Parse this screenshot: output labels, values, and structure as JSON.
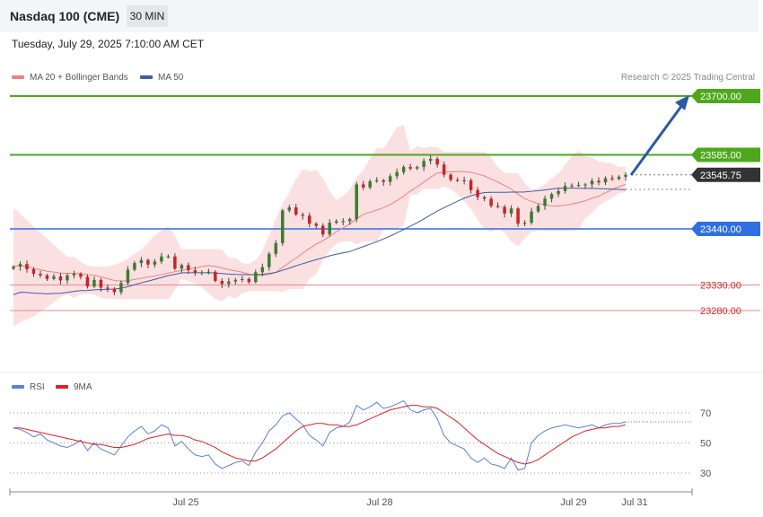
{
  "header": {
    "title": "Nasdaq 100 (CME)",
    "interval": "30 MIN"
  },
  "timestamp": "Tuesday, July 29, 2025 7:10:00 AM CET",
  "legend": {
    "ma20": "MA 20 + Bollinger Bands",
    "ma50": "MA 50"
  },
  "credit": "Research © 2025 Trading Central",
  "rsi_legend": {
    "rsi": "RSI",
    "ma9": "9MA"
  },
  "colors": {
    "up": "#3a7d2e",
    "down": "#cc2222",
    "ma20": "#f08080",
    "ma50": "#3b5fa0",
    "band": "#f9d6d8",
    "green_level": "#4ea81b",
    "blue_level": "#2f6fe0",
    "red_level": "#e88a8a",
    "arrow": "#2b5aa0"
  },
  "chart_data": [
    {
      "type": "candlestick",
      "title": "Nasdaq 100 (CME)",
      "interval": "30 MIN",
      "x_labels": [
        "Jul 25",
        "Jul 28",
        "Jul 29",
        "Jul 31"
      ],
      "levels": [
        {
          "value": 23700.0,
          "label": "23700.00",
          "kind": "resistance"
        },
        {
          "value": 23585.0,
          "label": "23585.00",
          "kind": "resistance"
        },
        {
          "value": 23545.75,
          "label": "23545.75",
          "kind": "last"
        },
        {
          "value": 23440.0,
          "label": "23440.00",
          "kind": "pivot"
        },
        {
          "value": 23330.0,
          "label": "23330.00",
          "kind": "support"
        },
        {
          "value": 23280.0,
          "label": "23280.00",
          "kind": "support"
        }
      ],
      "close_series": [
        23366,
        23371,
        23361,
        23352,
        23349,
        23342,
        23347,
        23339,
        23349,
        23352,
        23346,
        23327,
        23340,
        23325,
        23323,
        23316,
        23334,
        23360,
        23373,
        23379,
        23370,
        23376,
        23386,
        23386,
        23362,
        23369,
        23359,
        23354,
        23355,
        23356,
        23338,
        23332,
        23337,
        23340,
        23342,
        23336,
        23355,
        23365,
        23391,
        23412,
        23476,
        23482,
        23468,
        23466,
        23450,
        23446,
        23429,
        23452,
        23455,
        23455,
        23459,
        23527,
        23521,
        23533,
        23535,
        23532,
        23543,
        23551,
        23561,
        23558,
        23561,
        23573,
        23577,
        23566,
        23546,
        23536,
        23535,
        23535,
        23516,
        23502,
        23499,
        23485,
        23483,
        23470,
        23480,
        23450,
        23452,
        23474,
        23485,
        23499,
        23508,
        23514,
        23524,
        23525,
        23526,
        23527,
        23534,
        23531,
        23539,
        23538,
        23542,
        23546
      ],
      "ma20": {
        "start": 23330,
        "end": 23510
      },
      "ma50": {
        "start": 23270,
        "end": 23525
      },
      "ylim": [
        23150,
        23720
      ]
    },
    {
      "type": "line",
      "title": "RSI",
      "series": [
        {
          "name": "RSI",
          "values": [
            60,
            59,
            57,
            54,
            56,
            52,
            50,
            48,
            47,
            49,
            52,
            45,
            50,
            46,
            44,
            42,
            48,
            54,
            58,
            61,
            56,
            58,
            62,
            60,
            48,
            51,
            46,
            42,
            41,
            42,
            36,
            33,
            35,
            37,
            38,
            35,
            44,
            50,
            58,
            62,
            68,
            70,
            66,
            62,
            55,
            52,
            48,
            57,
            60,
            61,
            64,
            75,
            72,
            74,
            77,
            73,
            74,
            76,
            78,
            72,
            70,
            72,
            73,
            66,
            55,
            50,
            48,
            46,
            40,
            37,
            40,
            36,
            35,
            33,
            40,
            32,
            33,
            50,
            55,
            58,
            60,
            61,
            62,
            61,
            60,
            61,
            62,
            60,
            62,
            63,
            63,
            64
          ]
        },
        {
          "name": "9MA",
          "values": [
            60,
            60,
            59,
            58,
            57,
            56,
            55,
            54,
            53,
            52,
            51,
            50,
            49,
            49,
            48,
            47,
            47,
            48,
            49,
            51,
            53,
            54,
            55,
            56,
            55,
            55,
            54,
            52,
            51,
            49,
            47,
            44,
            42,
            40,
            39,
            38,
            38,
            40,
            43,
            46,
            50,
            54,
            58,
            61,
            62,
            63,
            63,
            62,
            62,
            61,
            61,
            62,
            64,
            66,
            68,
            70,
            72,
            73,
            74,
            75,
            75,
            74,
            74,
            73,
            70,
            67,
            64,
            60,
            56,
            52,
            49,
            46,
            43,
            41,
            39,
            37,
            36,
            37,
            39,
            42,
            45,
            48,
            51,
            54,
            56,
            58,
            59,
            60,
            60,
            61,
            61,
            62
          ]
        }
      ],
      "levels": [
        "70",
        "50",
        "30"
      ],
      "ylim": [
        20,
        80
      ]
    }
  ]
}
